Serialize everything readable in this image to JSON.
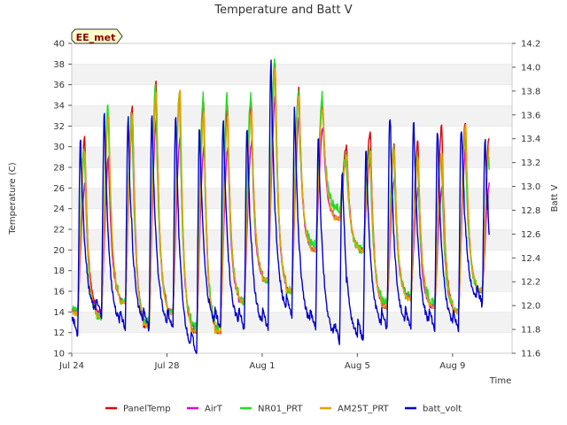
{
  "chart_data": {
    "type": "line",
    "title": "Temperature and Batt V",
    "xlabel": "Time",
    "ylabel": "Temperature (C)",
    "y2label": "Batt V",
    "site_label": "EE_met",
    "x_unit": "days",
    "xlim": [
      "2024-07-24",
      "2024-08-11 12:00"
    ],
    "x_ticks": [
      {
        "label": "Jul 24",
        "day": 0
      },
      {
        "label": "Jul 28",
        "day": 4
      },
      {
        "label": "Aug 1",
        "day": 8
      },
      {
        "label": "Aug 5",
        "day": 12
      },
      {
        "label": "Aug 9",
        "day": 16
      }
    ],
    "ylim": [
      10,
      40
    ],
    "y_ticks": [
      "10",
      "12",
      "14",
      "16",
      "18",
      "20",
      "22",
      "24",
      "26",
      "28",
      "30",
      "32",
      "34",
      "36",
      "38",
      "40"
    ],
    "y2lim": [
      11.6,
      14.2
    ],
    "y2_ticks": [
      "11.6",
      "11.8",
      "12.0",
      "12.2",
      "12.4",
      "12.6",
      "12.8",
      "13.0",
      "13.2",
      "13.4",
      "13.6",
      "13.8",
      "14.0",
      "14.2"
    ],
    "grid": "horizontal bands",
    "legend": "bottom",
    "daily": {
      "days": [
        0,
        1,
        2,
        3,
        4,
        5,
        6,
        7,
        8,
        9,
        10,
        11,
        12,
        13,
        14,
        15,
        16,
        17
      ],
      "PanelTemp_max": [
        31,
        29,
        34,
        36.5,
        35.5,
        34.5,
        34,
        34.5,
        38,
        35.7,
        34,
        30,
        31.5,
        30.5,
        30.5,
        32,
        32.5,
        31
      ],
      "PanelTemp_min": [
        14,
        14,
        15,
        12.5,
        14,
        12,
        12,
        15,
        17,
        16,
        20,
        23,
        20,
        14.5,
        15.5,
        14.5,
        14,
        16
      ],
      "AirT_max": [
        26.5,
        29,
        32.5,
        33,
        31,
        30,
        30,
        30.5,
        35,
        33,
        32,
        29,
        29,
        27,
        26,
        26,
        30,
        26.5
      ],
      "AirT_min": [
        14,
        14,
        15,
        13,
        14,
        12.5,
        12.5,
        15,
        17,
        16,
        20,
        23,
        20,
        14.5,
        15.5,
        14.5,
        14,
        16
      ],
      "NR01_PRT_max": [
        30,
        34,
        33,
        36,
        35,
        35,
        35,
        35,
        38.5,
        35.3,
        35,
        29,
        30,
        30,
        29,
        29,
        31,
        29
      ],
      "NR01_PRT_min": [
        14,
        13.5,
        15,
        13,
        14,
        12.5,
        12.5,
        15,
        17,
        16,
        20.5,
        24,
        20,
        15,
        15.5,
        15,
        14,
        16
      ],
      "AM25T_PRT_max": [
        29.5,
        33,
        33,
        35.5,
        35.5,
        33.5,
        33,
        33.5,
        37.5,
        35,
        34,
        29,
        29.5,
        30,
        29,
        29.5,
        32,
        30
      ],
      "AM25T_PRT_min": [
        13.8,
        13.5,
        14.8,
        12.5,
        13.8,
        12,
        12,
        15,
        17,
        16,
        20,
        23,
        20,
        14.5,
        15.2,
        14.5,
        14,
        16
      ],
      "batt_volt_max": [
        13.42,
        13.62,
        13.61,
        13.62,
        13.62,
        13.52,
        13.58,
        13.53,
        14.09,
        13.64,
        13.42,
        13.13,
        13.32,
        13.61,
        13.59,
        13.48,
        13.6,
        13.4
      ],
      "batt_volt_min": [
        11.75,
        11.9,
        11.8,
        11.8,
        11.8,
        11.6,
        11.8,
        11.8,
        11.8,
        11.9,
        11.8,
        11.7,
        11.7,
        11.8,
        11.8,
        11.8,
        11.8,
        12.0
      ]
    },
    "series": [
      {
        "name": "PanelTemp",
        "axis": "left",
        "color": "#dd0000"
      },
      {
        "name": "AirT",
        "axis": "left",
        "color": "#dd00dd"
      },
      {
        "name": "NR01_PRT",
        "axis": "left",
        "color": "#22dd22"
      },
      {
        "name": "AM25T_PRT",
        "axis": "left",
        "color": "#e8a000"
      },
      {
        "name": "batt_volt",
        "axis": "right",
        "color": "#0000cc"
      }
    ]
  }
}
